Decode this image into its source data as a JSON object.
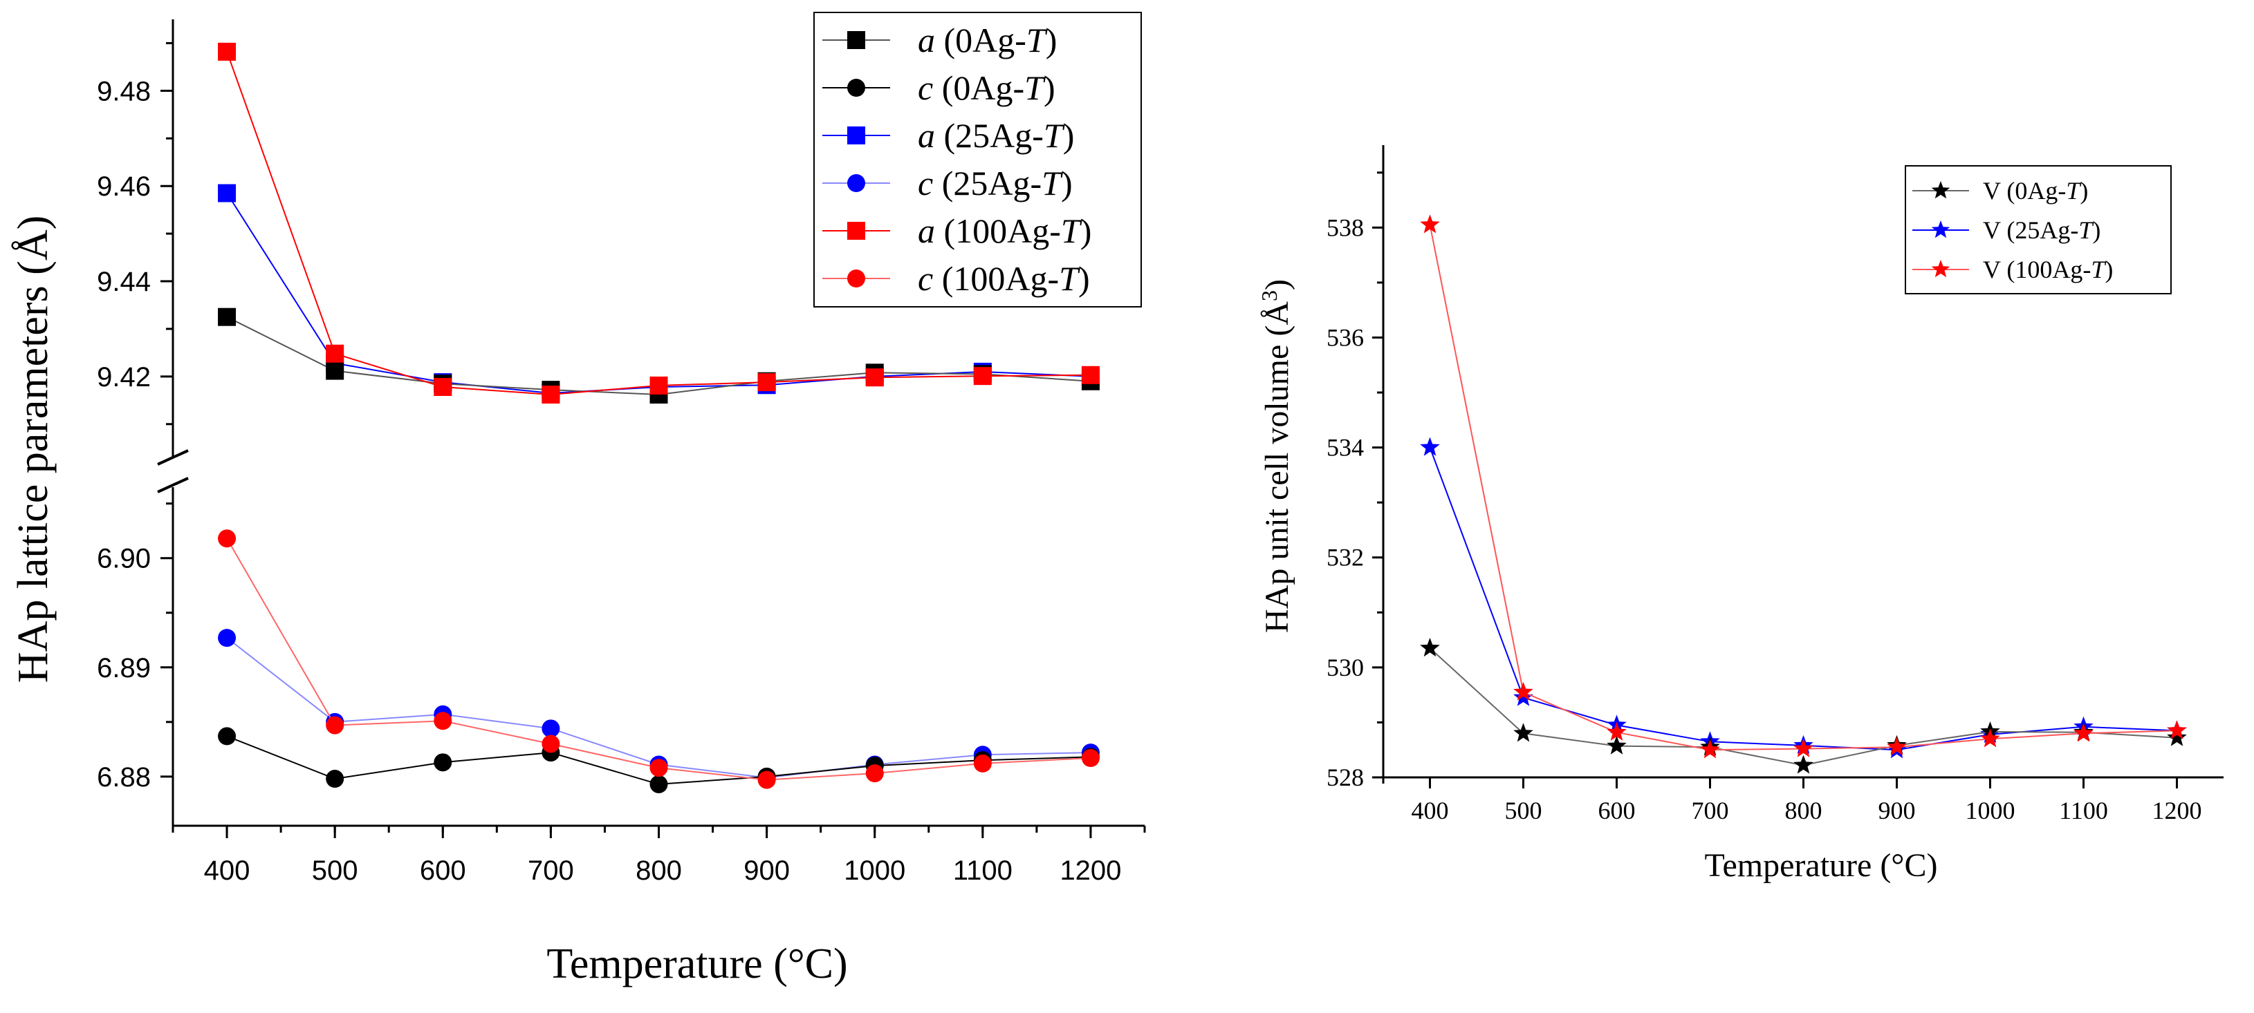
{
  "chart_data": [
    {
      "type": "line",
      "panel": "left",
      "xlabel": "Temperature (°C)",
      "ylabel": "HAp lattice parameters (Å)",
      "x": [
        400,
        500,
        600,
        700,
        800,
        900,
        1000,
        1100,
        1200
      ],
      "xlim": [
        350,
        1250
      ],
      "x_ticks": [
        "400",
        "500",
        "600",
        "700",
        "800",
        "900",
        "1000",
        "1100",
        "1200"
      ],
      "broken_y_axis": true,
      "upper_ylim": [
        9.403,
        9.495
      ],
      "upper_y_ticks": [
        "9.42",
        "9.44",
        "9.46",
        "9.48"
      ],
      "lower_ylim": [
        6.8755,
        6.9065
      ],
      "lower_y_ticks": [
        "6.88",
        "6.89",
        "6.90"
      ],
      "legend_position": "top-right",
      "series": [
        {
          "name": "a (0Ag-T)",
          "param": "a",
          "sample": "0Ag-",
          "var": "T",
          "segment": "upper",
          "marker": "square",
          "color": "#000000",
          "line_color": "#555555",
          "values": [
            9.4325,
            9.4212,
            9.4185,
            9.4172,
            9.4162,
            9.419,
            9.4208,
            9.4205,
            9.419
          ]
        },
        {
          "name": "c (0Ag-T)",
          "param": "c",
          "sample": "0Ag-",
          "var": "T",
          "segment": "lower",
          "marker": "circle",
          "color": "#000000",
          "line_color": "#000000",
          "values": [
            6.8837,
            6.8798,
            6.8813,
            6.8822,
            6.8793,
            6.88,
            6.881,
            6.8815,
            6.8818
          ]
        },
        {
          "name": "a (25Ag-T)",
          "param": "a",
          "sample": "25Ag-",
          "var": "T",
          "segment": "upper",
          "marker": "square",
          "color": "#0000ff",
          "line_color": "#0000ff",
          "values": [
            9.4585,
            9.4228,
            9.4188,
            9.4165,
            9.4178,
            9.4182,
            9.42,
            9.421,
            9.42
          ]
        },
        {
          "name": "c (25Ag-T)",
          "param": "c",
          "sample": "25Ag-",
          "var": "T",
          "segment": "lower",
          "marker": "circle",
          "color": "#0000ff",
          "line_color": "#8888ff",
          "values": [
            6.8927,
            6.885,
            6.8857,
            6.8844,
            6.8811,
            6.8799,
            6.8811,
            6.882,
            6.8822
          ]
        },
        {
          "name": "a (100Ag-T)",
          "param": "a",
          "sample": "100Ag-",
          "var": "T",
          "segment": "upper",
          "marker": "square",
          "color": "#ff0000",
          "line_color": "#ff0000",
          "values": [
            9.4882,
            9.4248,
            9.4178,
            9.4162,
            9.4181,
            9.4188,
            9.4198,
            9.4201,
            9.4203
          ]
        },
        {
          "name": "c (100Ag-T)",
          "param": "c",
          "sample": "100Ag-",
          "var": "T",
          "segment": "lower",
          "marker": "circle",
          "color": "#ff0000",
          "line_color": "#ff6666",
          "values": [
            6.9018,
            6.8847,
            6.8851,
            6.883,
            6.8808,
            6.8797,
            6.8803,
            6.8812,
            6.8817
          ]
        }
      ]
    },
    {
      "type": "line",
      "panel": "right",
      "xlabel": "Temperature (°C)",
      "ylabel_main": "HAp unit cell volume (Å",
      "ylabel_sup": "3",
      "ylabel_end": ")",
      "x": [
        400,
        500,
        600,
        700,
        800,
        900,
        1000,
        1100,
        1200
      ],
      "xlim": [
        350,
        1250
      ],
      "x_ticks": [
        "400",
        "500",
        "600",
        "700",
        "800",
        "900",
        "1000",
        "1100",
        "1200"
      ],
      "ylim": [
        528,
        539.5
      ],
      "y_ticks": [
        "528",
        "530",
        "532",
        "534",
        "536",
        "538"
      ],
      "legend_position": "top-right",
      "series": [
        {
          "name": "V (0Ag-T)",
          "param": "V",
          "sample": "0Ag-",
          "var": "T",
          "marker": "star",
          "color": "#000000",
          "line_color": "#666666",
          "values": [
            530.35,
            528.8,
            528.57,
            528.55,
            528.22,
            528.58,
            528.83,
            528.82,
            528.72
          ]
        },
        {
          "name": "V (25Ag-T)",
          "param": "V",
          "sample": "25Ag-",
          "var": "T",
          "marker": "star",
          "color": "#0000ff",
          "line_color": "#0000ff",
          "values": [
            534.0,
            529.45,
            528.95,
            528.65,
            528.58,
            528.5,
            528.78,
            528.92,
            528.85
          ]
        },
        {
          "name": "V (100Ag-T)",
          "param": "V",
          "sample": "100Ag-",
          "var": "T",
          "marker": "star",
          "color": "#ff0000",
          "line_color": "#ff5555",
          "values": [
            538.05,
            529.55,
            528.82,
            528.5,
            528.52,
            528.55,
            528.7,
            528.8,
            528.85
          ]
        }
      ]
    }
  ]
}
